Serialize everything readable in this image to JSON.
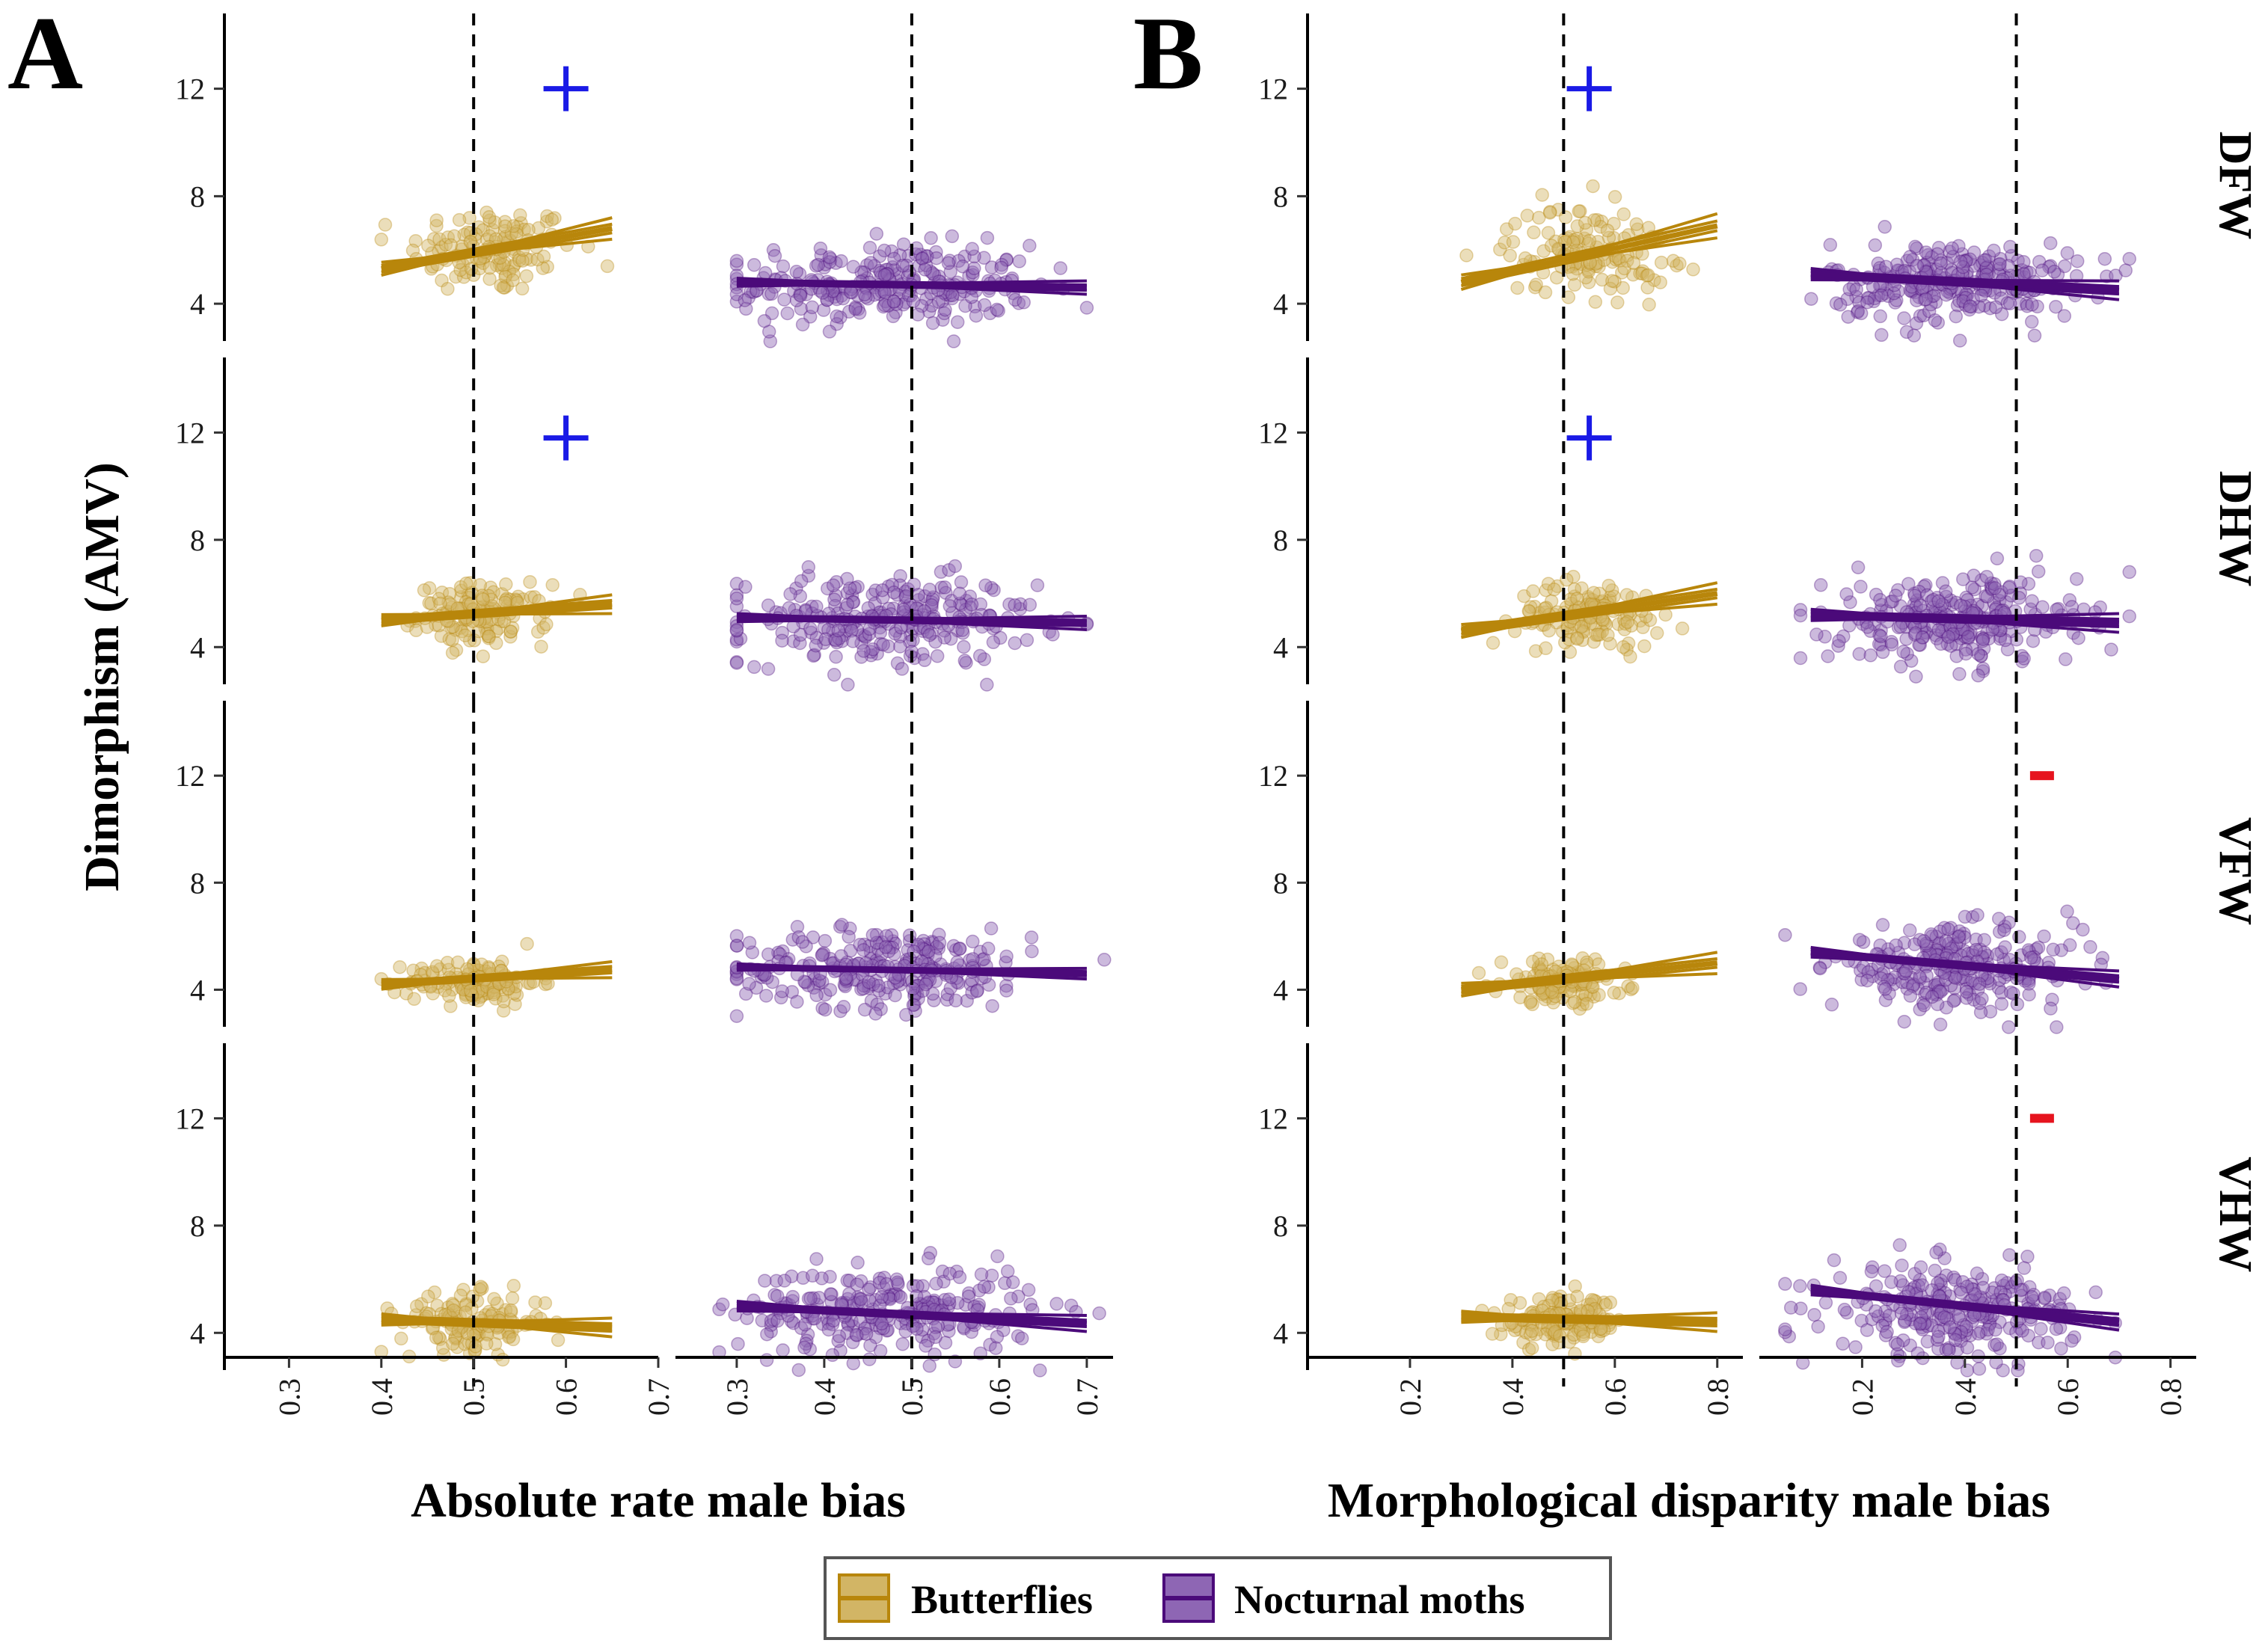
{
  "colors": {
    "butterflies": "#B8860B",
    "butterflies_point": "#D2B565",
    "moths": "#4B0A7A",
    "moths_point": "#8E66B4",
    "positive": "#1A1AE6",
    "negative": "#E6141E"
  },
  "panel_labels": [
    "A",
    "B"
  ],
  "y_axis_title": "Dimorphism (AMV)",
  "strips": [
    "DFW",
    "DHW",
    "VFW",
    "VHW"
  ],
  "legend": {
    "items": [
      {
        "label": "Butterflies",
        "color": "#B8860B",
        "fill": "#D2B565"
      },
      {
        "label": "Nocturnal moths",
        "color": "#4B0A7A",
        "fill": "#8E66B4"
      }
    ]
  },
  "chart_data": [
    {
      "type": "scatter",
      "panel": "A",
      "xlabel": "Absolute rate male bias",
      "ylabel": "Dimorphism (AMV)",
      "y_ticks": [
        4,
        8,
        12
      ],
      "ylim": [
        2,
        14.8
      ],
      "reference_line_x": 0.5,
      "columns": [
        {
          "group": "Butterflies",
          "xlim": [
            0.23,
            0.7
          ],
          "x_ticks": [
            0.3,
            0.4,
            0.5,
            0.6,
            0.7
          ],
          "x_tick_labels": [
            "0.3",
            "0.4",
            "0.5",
            "0.6",
            "0.7"
          ]
        },
        {
          "group": "Nocturnal moths",
          "xlim": [
            0.23,
            0.73
          ],
          "x_ticks": [
            0.3,
            0.4,
            0.5,
            0.6,
            0.7
          ],
          "x_tick_labels": [
            "0.3",
            "0.4",
            "0.5",
            "0.6",
            "0.7"
          ]
        }
      ],
      "facets": [
        {
          "wing": "DFW",
          "sign": "+",
          "sign_x": 0.6,
          "sign_y": 12,
          "butterflies": {
            "center_x": 0.52,
            "sd_x": 0.045,
            "x_range": [
              0.4,
              0.65
            ],
            "center_y": 6.0,
            "sd_y": 1.1,
            "n": 140,
            "fit": {
              "x": [
                0.4,
                0.65
              ],
              "y": [
                5.3,
                6.8
              ]
            },
            "band": 0.4
          },
          "moths": {
            "center_x": 0.47,
            "sd_x": 0.085,
            "x_range": [
              0.3,
              0.7
            ],
            "center_y": 4.7,
            "sd_y": 1.0,
            "n": 280,
            "fit": {
              "x": [
                0.3,
                0.7
              ],
              "y": [
                4.8,
                4.6
              ]
            },
            "band": 0.25
          }
        },
        {
          "wing": "DHW",
          "sign": "+",
          "sign_x": 0.6,
          "sign_y": 11.8,
          "butterflies": {
            "center_x": 0.51,
            "sd_x": 0.035,
            "x_range": [
              0.4,
              0.65
            ],
            "center_y": 5.2,
            "sd_y": 0.75,
            "n": 140,
            "fit": {
              "x": [
                0.4,
                0.65
              ],
              "y": [
                5.0,
                5.6
              ]
            },
            "band": 0.35
          },
          "moths": {
            "center_x": 0.47,
            "sd_x": 0.085,
            "x_range": [
              0.3,
              0.7
            ],
            "center_y": 5.0,
            "sd_y": 1.1,
            "n": 280,
            "fit": {
              "x": [
                0.3,
                0.7
              ],
              "y": [
                5.1,
                4.9
              ]
            },
            "band": 0.25
          }
        },
        {
          "wing": "VFW",
          "sign": "",
          "sign_x": 0.6,
          "sign_y": 12,
          "butterflies": {
            "center_x": 0.5,
            "sd_x": 0.035,
            "x_range": [
              0.4,
              0.65
            ],
            "center_y": 4.3,
            "sd_y": 0.55,
            "n": 140,
            "fit": {
              "x": [
                0.4,
                0.65
              ],
              "y": [
                4.2,
                4.75
              ]
            },
            "band": 0.3
          },
          "moths": {
            "center_x": 0.47,
            "sd_x": 0.085,
            "x_range": [
              0.3,
              0.72
            ],
            "center_y": 4.8,
            "sd_y": 1.0,
            "n": 280,
            "fit": {
              "x": [
                0.3,
                0.7
              ],
              "y": [
                4.85,
                4.6
              ]
            },
            "band": 0.2
          }
        },
        {
          "wing": "VHW",
          "sign": "",
          "sign_x": 0.6,
          "sign_y": 12,
          "butterflies": {
            "center_x": 0.5,
            "sd_x": 0.04,
            "x_range": [
              0.4,
              0.65
            ],
            "center_y": 4.4,
            "sd_y": 0.7,
            "n": 140,
            "fit": {
              "x": [
                0.4,
                0.65
              ],
              "y": [
                4.5,
                4.2
              ]
            },
            "band": 0.35
          },
          "moths": {
            "center_x": 0.47,
            "sd_x": 0.085,
            "x_range": [
              0.28,
              0.72
            ],
            "center_y": 4.8,
            "sd_y": 1.1,
            "n": 280,
            "fit": {
              "x": [
                0.3,
                0.7
              ],
              "y": [
                5.0,
                4.35
              ]
            },
            "band": 0.3
          }
        }
      ]
    },
    {
      "type": "scatter",
      "panel": "B",
      "xlabel": "Morphological disparity male bias",
      "ylabel": "Dimorphism (AMV)",
      "y_ticks": [
        4,
        8,
        12
      ],
      "ylim": [
        2,
        14.8
      ],
      "reference_line_x": 0.5,
      "columns": [
        {
          "group": "Butterflies",
          "xlim": [
            0.0,
            0.85
          ],
          "x_ticks": [
            0.2,
            0.4,
            0.6,
            0.8
          ],
          "x_tick_labels": [
            "0.2",
            "0.4",
            "0.6",
            "0.8"
          ]
        },
        {
          "group": "Nocturnal moths",
          "xlim": [
            0.0,
            0.85
          ],
          "x_ticks": [
            0.2,
            0.4,
            0.6,
            0.8
          ],
          "x_tick_labels": [
            "0.2",
            "0.4",
            "0.6",
            "0.8"
          ]
        }
      ],
      "facets": [
        {
          "wing": "DFW",
          "sign": "+",
          "sign_x": 0.55,
          "sign_y": 12,
          "butterflies": {
            "center_x": 0.55,
            "sd_x": 0.08,
            "x_range": [
              0.25,
              0.8
            ],
            "center_y": 6.0,
            "sd_y": 1.1,
            "n": 140,
            "fit": {
              "x": [
                0.3,
                0.8
              ],
              "y": [
                4.8,
                6.9
              ]
            },
            "band": 0.45
          },
          "moths": {
            "center_x": 0.38,
            "sd_x": 0.12,
            "x_range": [
              0.08,
              0.72
            ],
            "center_y": 4.8,
            "sd_y": 1.0,
            "n": 280,
            "fit": {
              "x": [
                0.1,
                0.7
              ],
              "y": [
                5.1,
                4.5
              ]
            },
            "band": 0.35
          }
        },
        {
          "wing": "DHW",
          "sign": "+",
          "sign_x": 0.55,
          "sign_y": 11.8,
          "butterflies": {
            "center_x": 0.55,
            "sd_x": 0.07,
            "x_range": [
              0.3,
              0.8
            ],
            "center_y": 5.2,
            "sd_y": 0.8,
            "n": 140,
            "fit": {
              "x": [
                0.3,
                0.8
              ],
              "y": [
                4.6,
                6.0
              ]
            },
            "band": 0.4
          },
          "moths": {
            "center_x": 0.38,
            "sd_x": 0.12,
            "x_range": [
              0.08,
              0.72
            ],
            "center_y": 5.0,
            "sd_y": 1.1,
            "n": 280,
            "fit": {
              "x": [
                0.1,
                0.7
              ],
              "y": [
                5.2,
                4.9
              ]
            },
            "band": 0.35
          }
        },
        {
          "wing": "VFW",
          "sign": "-",
          "sign_x": 0.55,
          "sign_y": 12,
          "butterflies": {
            "center_x": 0.5,
            "sd_x": 0.06,
            "x_range": [
              0.3,
              0.72
            ],
            "center_y": 4.3,
            "sd_y": 0.55,
            "n": 140,
            "fit": {
              "x": [
                0.3,
                0.8
              ],
              "y": [
                4.0,
                5.0
              ]
            },
            "band": 0.4
          },
          "moths": {
            "center_x": 0.38,
            "sd_x": 0.12,
            "x_range": [
              0.05,
              0.72
            ],
            "center_y": 4.8,
            "sd_y": 1.0,
            "n": 280,
            "fit": {
              "x": [
                0.1,
                0.7
              ],
              "y": [
                5.4,
                4.4
              ]
            },
            "band": 0.3
          }
        },
        {
          "wing": "VHW",
          "sign": "-",
          "sign_x": 0.55,
          "sign_y": 12,
          "butterflies": {
            "center_x": 0.5,
            "sd_x": 0.06,
            "x_range": [
              0.3,
              0.72
            ],
            "center_y": 4.4,
            "sd_y": 0.6,
            "n": 140,
            "fit": {
              "x": [
                0.3,
                0.8
              ],
              "y": [
                4.6,
                4.4
              ]
            },
            "band": 0.35
          },
          "moths": {
            "center_x": 0.38,
            "sd_x": 0.12,
            "x_range": [
              0.05,
              0.72
            ],
            "center_y": 4.8,
            "sd_y": 1.1,
            "n": 280,
            "fit": {
              "x": [
                0.1,
                0.7
              ],
              "y": [
                5.6,
                4.4
              ]
            },
            "band": 0.3
          }
        }
      ]
    }
  ]
}
